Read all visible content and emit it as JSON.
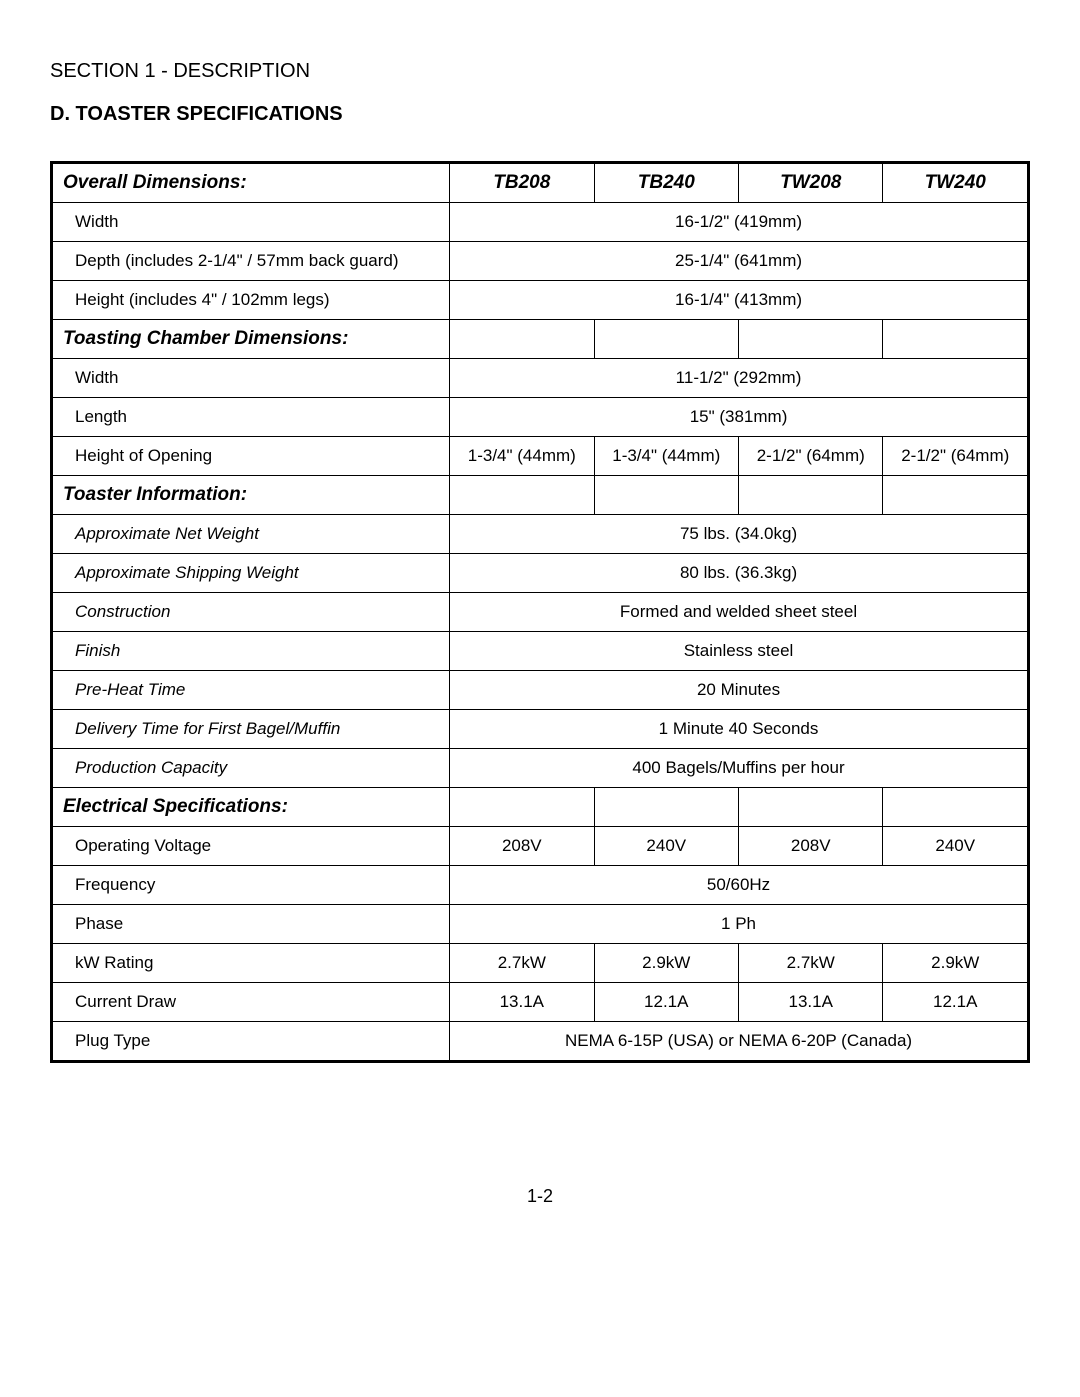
{
  "sectionTitle": "SECTION 1 - DESCRIPTION",
  "subsectionTitle": "D. TOASTER SPECIFICATIONS",
  "columns": [
    "TB208",
    "TB240",
    "TW208",
    "TW240"
  ],
  "groups": [
    {
      "header": "Overall Dimensions:",
      "rows": [
        {
          "label": "Width",
          "values": [
            "16-1/2\" (419mm)"
          ],
          "span": 4,
          "indent": true
        },
        {
          "label": "Depth (includes 2-1/4\" / 57mm back guard)",
          "values": [
            "25-1/4\" (641mm)"
          ],
          "span": 4,
          "indent": true
        },
        {
          "label": "Height (includes 4\" / 102mm legs)",
          "values": [
            "16-1/4\" (413mm)"
          ],
          "span": 4,
          "indent": true
        }
      ]
    },
    {
      "header": "Toasting Chamber Dimensions:",
      "rows": [
        {
          "label": "Width",
          "values": [
            "11-1/2\" (292mm)"
          ],
          "span": 4,
          "indent": true
        },
        {
          "label": "Length",
          "values": [
            "15\" (381mm)"
          ],
          "span": 4,
          "indent": true
        },
        {
          "label": "Height of Opening",
          "values": [
            "1-3/4\" (44mm)",
            "1-3/4\" (44mm)",
            "2-1/2\" (64mm)",
            "2-1/2\" (64mm)"
          ],
          "span": 1,
          "indent": true
        }
      ]
    },
    {
      "header": "Toaster Information:",
      "rows": [
        {
          "label": "Approximate Net Weight",
          "values": [
            "75 lbs. (34.0kg)"
          ],
          "span": 4,
          "indent": true,
          "italic": true
        },
        {
          "label": "Approximate Shipping Weight",
          "values": [
            "80 lbs. (36.3kg)"
          ],
          "span": 4,
          "indent": true,
          "italic": true
        },
        {
          "label": "Construction",
          "values": [
            "Formed and welded sheet steel"
          ],
          "span": 4,
          "indent": true,
          "italic": true
        },
        {
          "label": "Finish",
          "values": [
            "Stainless steel"
          ],
          "span": 4,
          "indent": true,
          "italic": true
        },
        {
          "label": "Pre-Heat Time",
          "values": [
            "20 Minutes"
          ],
          "span": 4,
          "indent": true,
          "italic": true
        },
        {
          "label": "Delivery Time for First Bagel/Muffin",
          "values": [
            "1 Minute 40 Seconds"
          ],
          "span": 4,
          "indent": true,
          "italic": true
        },
        {
          "label": "Production Capacity",
          "values": [
            "400 Bagels/Muffins per hour"
          ],
          "span": 4,
          "indent": true,
          "italic": true
        }
      ]
    },
    {
      "header": "Electrical Specifications:",
      "rows": [
        {
          "label": "Operating Voltage",
          "values": [
            "208V",
            "240V",
            "208V",
            "240V"
          ],
          "span": 1,
          "indent": true
        },
        {
          "label": "Frequency",
          "values": [
            "50/60Hz"
          ],
          "span": 4,
          "indent": true
        },
        {
          "label": "Phase",
          "values": [
            "1 Ph"
          ],
          "span": 4,
          "indent": true
        },
        {
          "label": "kW Rating",
          "values": [
            "2.7kW",
            "2.9kW",
            "2.7kW",
            "2.9kW"
          ],
          "span": 1,
          "indent": true
        },
        {
          "label": "Current Draw",
          "values": [
            "13.1A",
            "12.1A",
            "13.1A",
            "12.1A"
          ],
          "span": 1,
          "indent": true
        },
        {
          "label": "Plug Type",
          "values": [
            "NEMA 6-15P (USA) or NEMA 6-20P (Canada)"
          ],
          "span": 4,
          "indent": true
        }
      ]
    }
  ],
  "pageNumber": "1-2"
}
